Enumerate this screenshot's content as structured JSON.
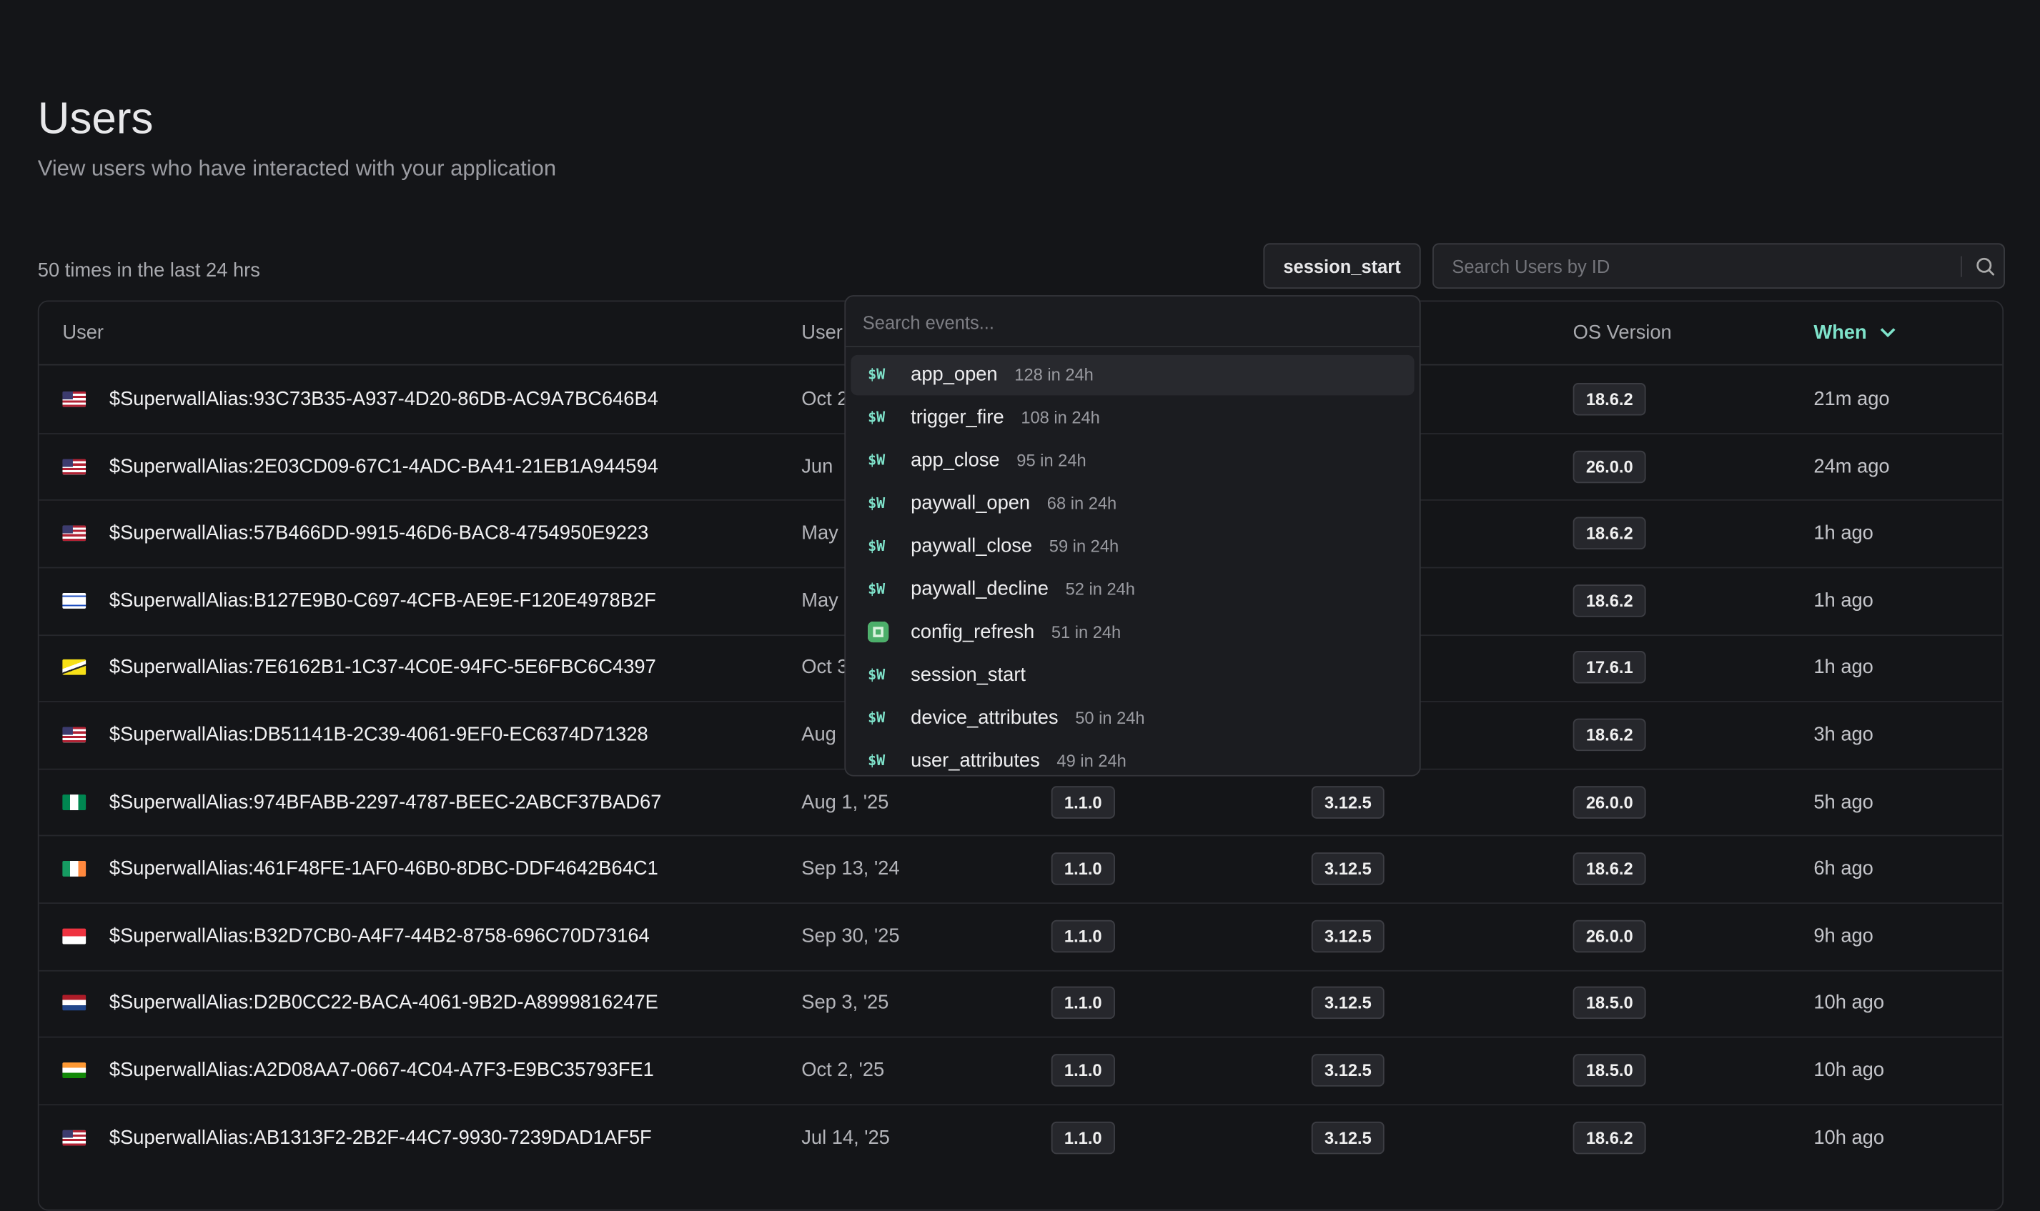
{
  "header": {
    "title": "Users",
    "subtitle": "View users who have interacted with your application"
  },
  "toolbar": {
    "count_text": "50 times in the last 24 hrs",
    "event_button": "session_start",
    "search_placeholder": "Search Users by ID"
  },
  "table": {
    "columns": [
      "User",
      "User",
      "OS Version",
      "When"
    ],
    "rows": [
      {
        "user": "$SuperwallAlias:93C73B35-A937-4D20-86DB-AC9A7BC646B4",
        "since": "Oct 2",
        "os": "18.6.2",
        "when": "21m ago"
      },
      {
        "user": "$SuperwallAlias:2E03CD09-67C1-4ADC-BA41-21EB1A944594",
        "since": "Jun",
        "os": "26.0.0",
        "when": "24m ago"
      },
      {
        "user": "$SuperwallAlias:57B466DD-9915-46D6-BAC8-4754950E9223",
        "since": "May",
        "os": "18.6.2",
        "when": "1h ago"
      },
      {
        "user": "$SuperwallAlias:B127E9B0-C697-4CFB-AE9E-F120E4978B2F",
        "since": "May",
        "os": "18.6.2",
        "when": "1h ago"
      },
      {
        "user": "$SuperwallAlias:7E6162B1-1C37-4C0E-94FC-5E6FBC6C4397",
        "since": "Oct 3",
        "os": "17.6.1",
        "when": "1h ago"
      },
      {
        "user": "$SuperwallAlias:DB51141B-2C39-4061-9EF0-EC6374D71328",
        "since": "Aug",
        "os": "18.6.2",
        "when": "3h ago"
      },
      {
        "user": "$SuperwallAlias:974BFABB-2297-4787-BEEC-2ABCF37BAD67",
        "since": "Aug 1, '25",
        "app": "1.1.0",
        "sdk": "3.12.5",
        "os": "26.0.0",
        "when": "5h ago"
      },
      {
        "user": "$SuperwallAlias:461F48FE-1AF0-46B0-8DBC-DDF4642B64C1",
        "since": "Sep 13, '24",
        "app": "1.1.0",
        "sdk": "3.12.5",
        "os": "18.6.2",
        "when": "6h ago"
      },
      {
        "user": "$SuperwallAlias:B32D7CB0-A4F7-44B2-8758-696C70D73164",
        "since": "Sep 30, '25",
        "app": "1.1.0",
        "sdk": "3.12.5",
        "os": "26.0.0",
        "when": "9h ago"
      },
      {
        "user": "$SuperwallAlias:D2B0CC22-BACA-4061-9B2D-A8999816247E",
        "since": "Sep 3, '25",
        "app": "1.1.0",
        "sdk": "3.12.5",
        "os": "18.5.0",
        "when": "10h ago"
      },
      {
        "user": "$SuperwallAlias:A2D08AA7-0667-4C04-A7F3-E9BC35793FE1",
        "since": "Oct 2, '25",
        "app": "1.1.0",
        "sdk": "3.12.5",
        "os": "18.5.0",
        "when": "10h ago"
      },
      {
        "user": "$SuperwallAlias:AB1313F2-2B2F-44C7-9930-7239DAD1AF5F",
        "since": "Jul 14, '25",
        "app": "1.1.0",
        "sdk": "3.12.5",
        "os": "18.6.2",
        "when": "10h ago"
      }
    ]
  },
  "dropdown": {
    "search_placeholder": "Search events...",
    "items": [
      {
        "icon": "$W",
        "name": "app_open",
        "count": "128 in 24h"
      },
      {
        "icon": "$W",
        "name": "trigger_fire",
        "count": "108 in 24h"
      },
      {
        "icon": "$W",
        "name": "app_close",
        "count": "95 in 24h"
      },
      {
        "icon": "$W",
        "name": "paywall_open",
        "count": "68 in 24h"
      },
      {
        "icon": "$W",
        "name": "paywall_close",
        "count": "59 in 24h"
      },
      {
        "icon": "$W",
        "name": "paywall_decline",
        "count": "52 in 24h"
      },
      {
        "name": "config_refresh",
        "count": "51 in 24h"
      },
      {
        "icon": "$W",
        "name": "session_start"
      },
      {
        "icon": "$W",
        "name": "device_attributes",
        "count": "50 in 24h"
      },
      {
        "icon": "$W",
        "name": "user_attributes",
        "count": "49 in 24h"
      }
    ]
  }
}
